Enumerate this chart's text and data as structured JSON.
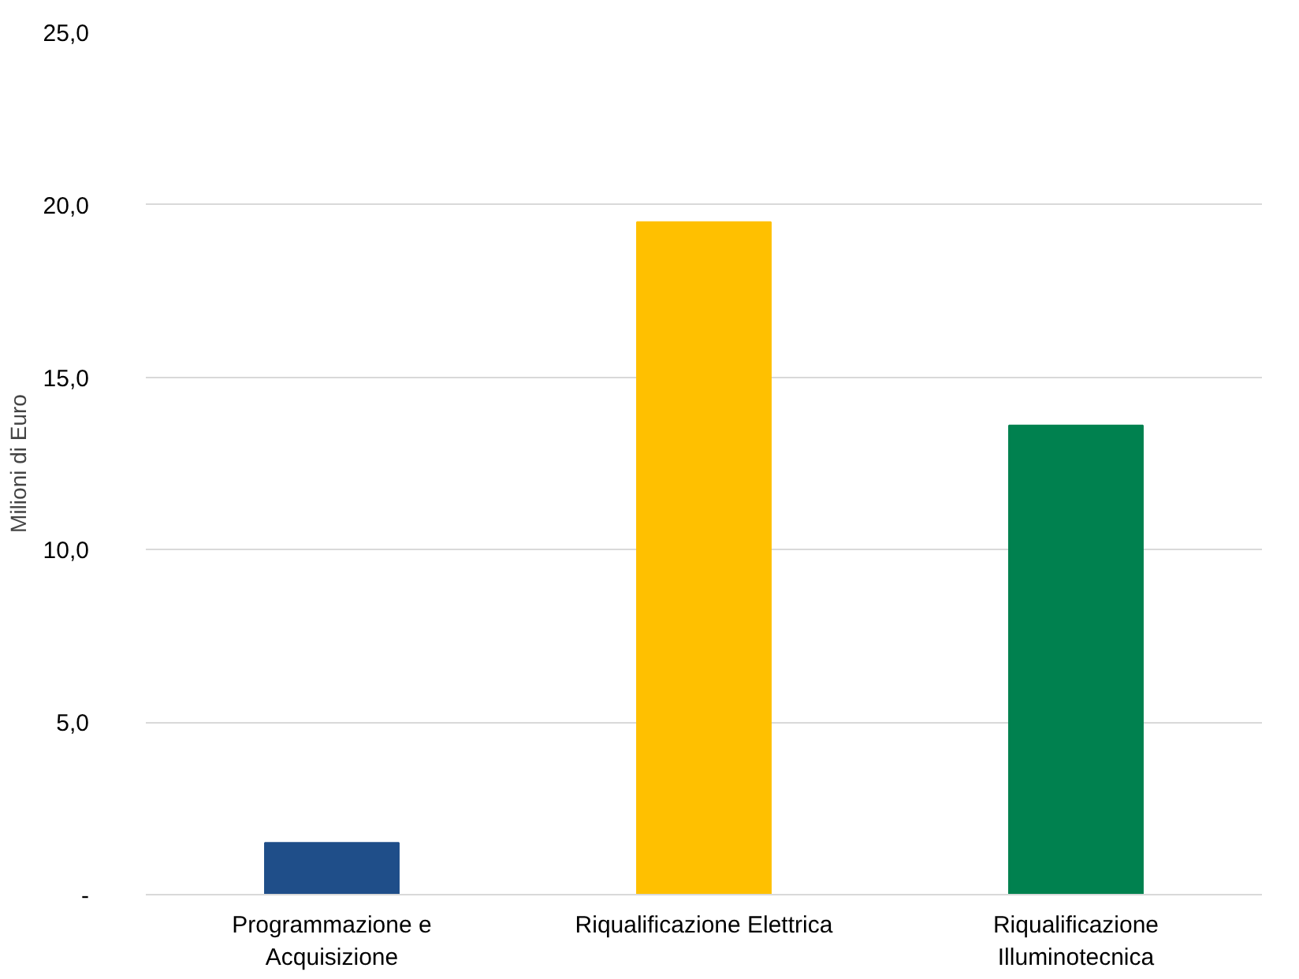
{
  "chart_data": {
    "type": "bar",
    "ylabel": "Milioni di Euro",
    "categories": [
      "Programmazione e Acquisizione",
      "Riqualificazione Elettrica",
      "Riqualificazione Illuminotecnica"
    ],
    "values": [
      1.5,
      19.5,
      13.6
    ],
    "colors": [
      "#1f4e89",
      "#ffc000",
      "#00814f"
    ],
    "ylim": [
      0,
      25
    ],
    "yticks": [
      {
        "value": 0,
        "label": "-"
      },
      {
        "value": 5,
        "label": "5,0"
      },
      {
        "value": 10,
        "label": "10,0"
      },
      {
        "value": 15,
        "label": "15,0"
      },
      {
        "value": 20,
        "label": "20,0"
      },
      {
        "value": 25,
        "label": "25,0"
      }
    ],
    "grid": "y"
  }
}
